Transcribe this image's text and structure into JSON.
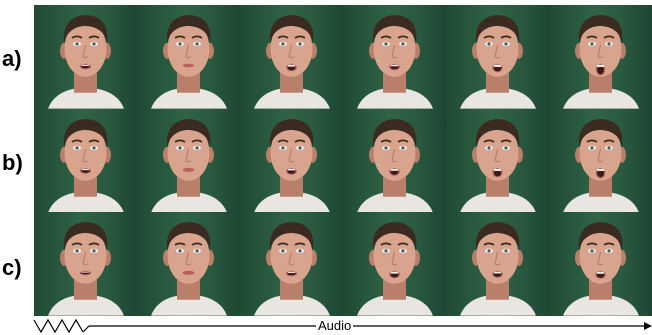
{
  "row_labels": [
    "a)",
    "b)",
    "c)"
  ],
  "columns": 6,
  "face_colors": {
    "background_dark": "#1d4632",
    "background_light": "#2f6346",
    "skin": "#d9a48d",
    "skin_shadow": "#b97f6a",
    "hair": "#3a2a20",
    "shirt": "#e9e6e2",
    "lips": "#b8615c",
    "mouth_inside": "#3b1a18",
    "teeth": "#f2eeea"
  },
  "mouth_openness": [
    [
      0.25,
      0.05,
      0.45,
      0.35,
      0.55,
      0.85
    ],
    [
      0.3,
      0.1,
      0.4,
      0.5,
      0.65,
      0.75
    ],
    [
      0.15,
      0.1,
      0.25,
      0.45,
      0.4,
      0.5
    ]
  ],
  "timeline": {
    "label": "Audio"
  }
}
